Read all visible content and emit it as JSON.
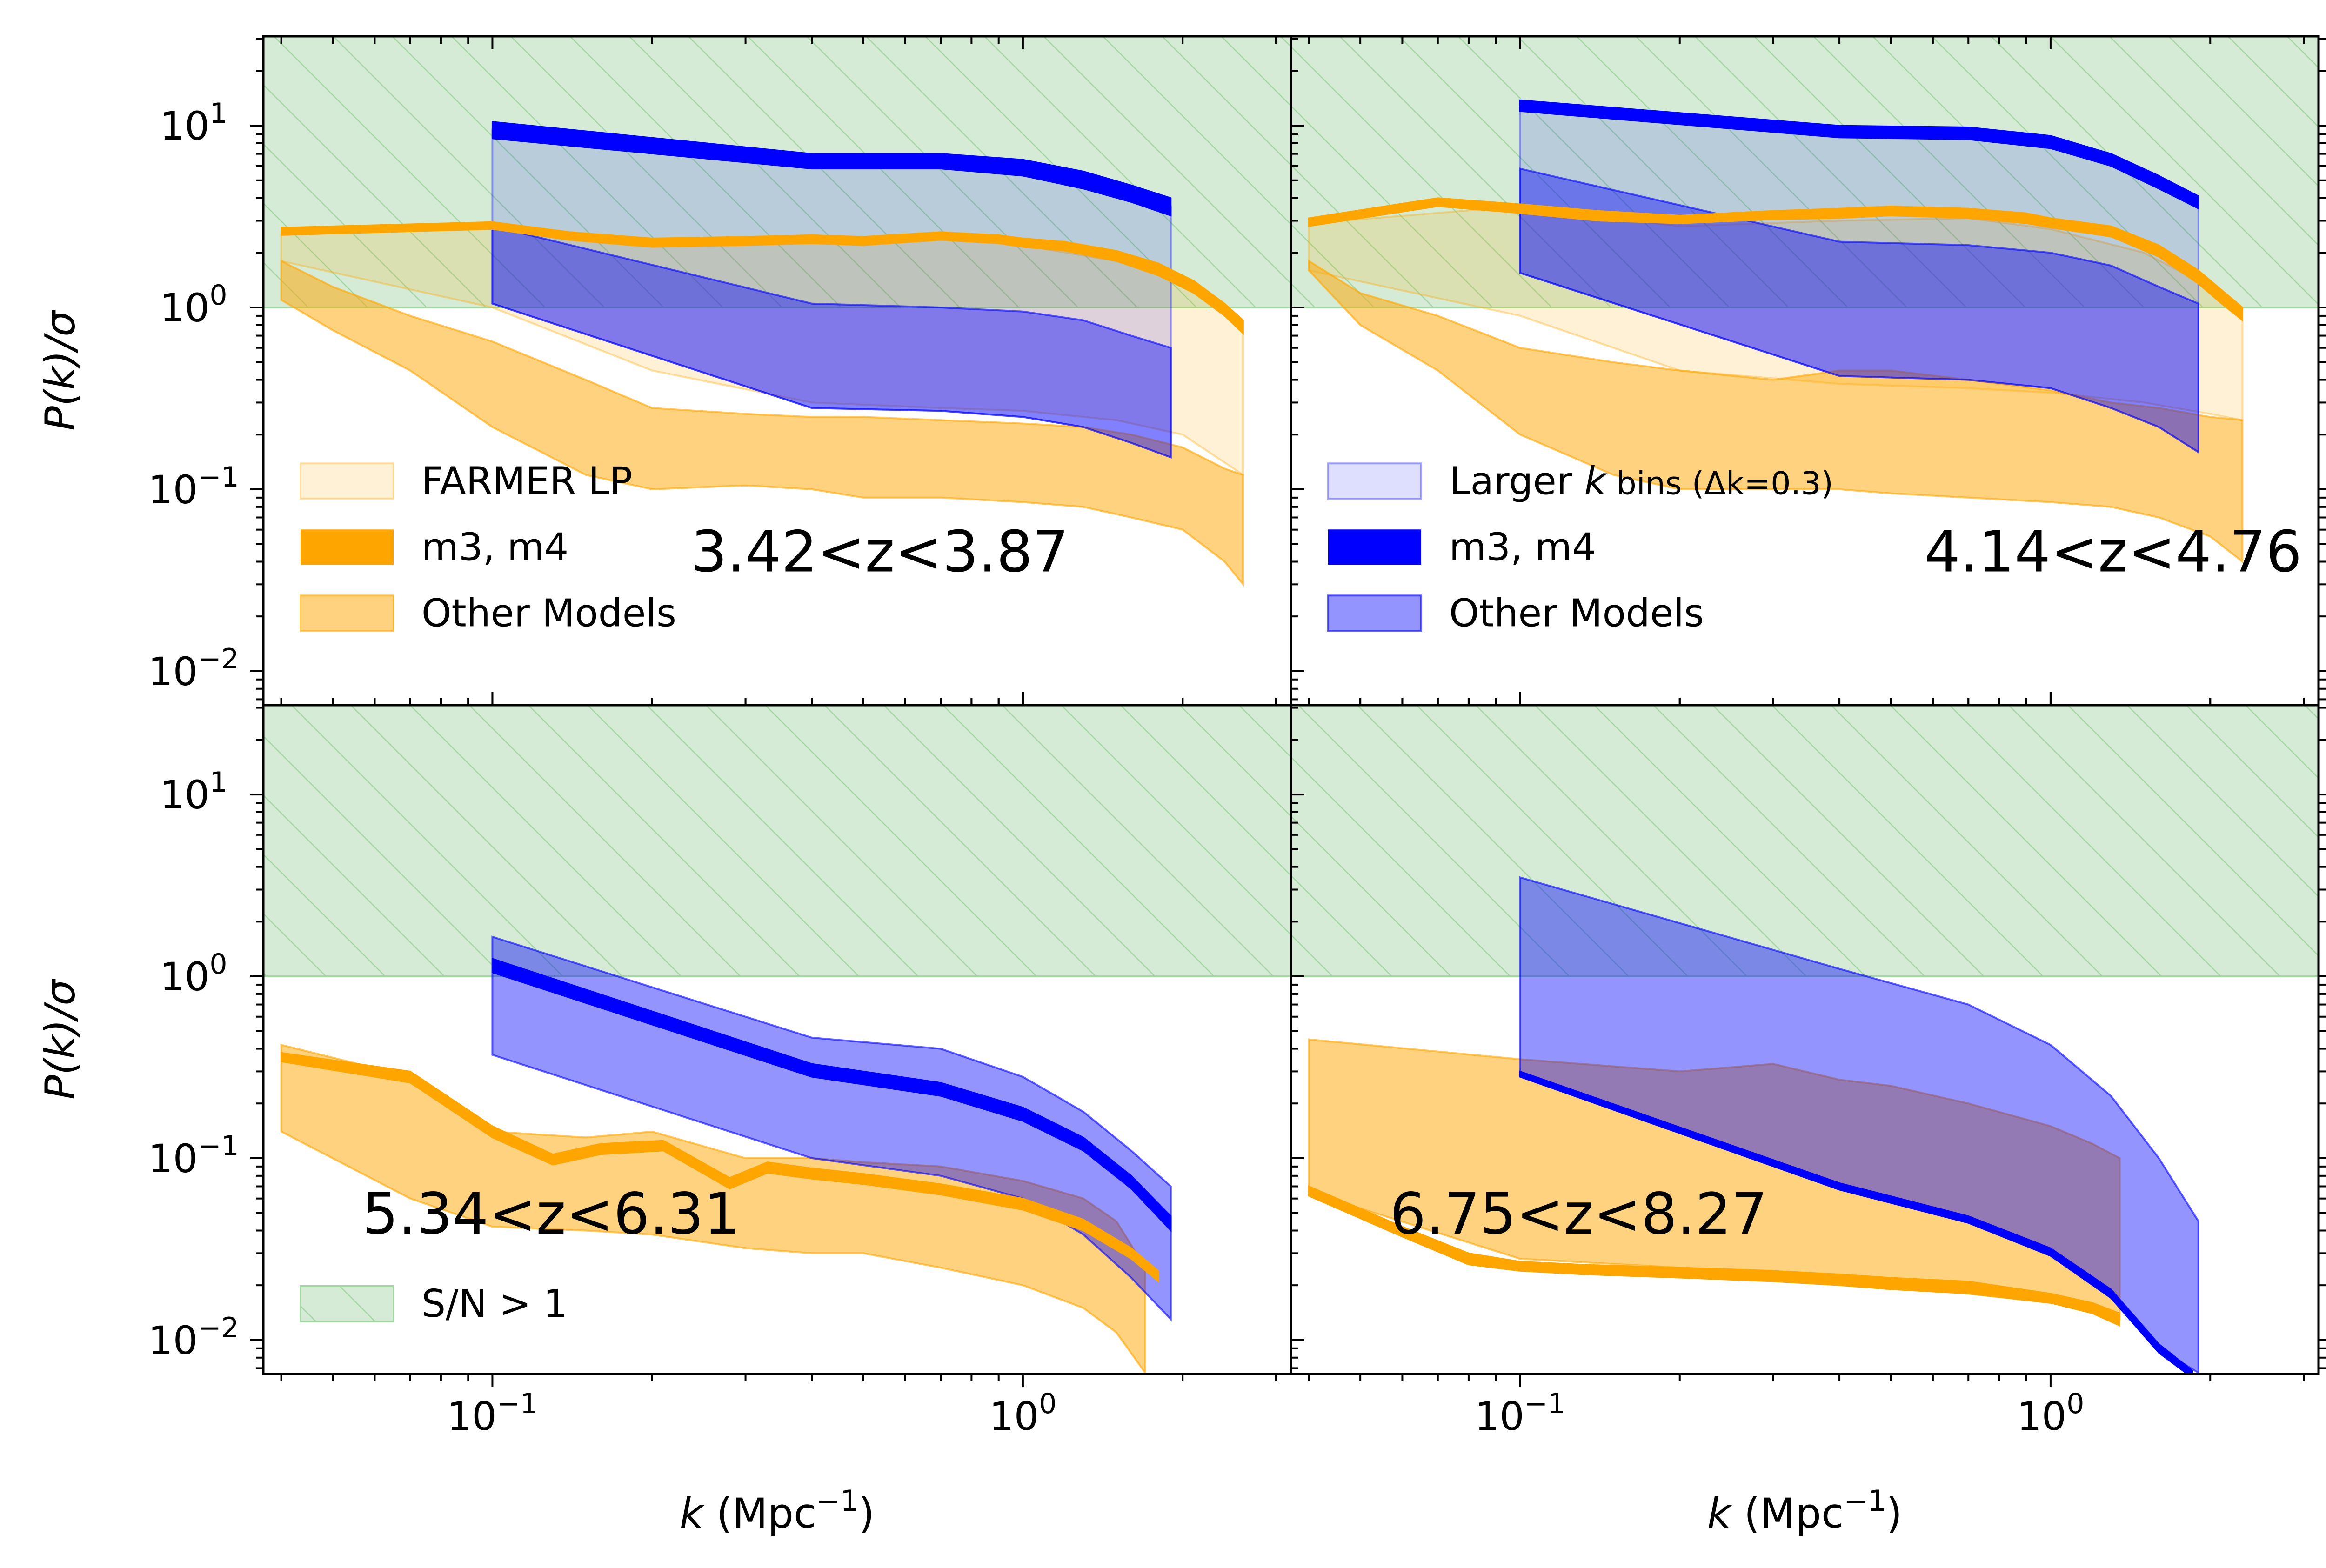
{
  "chart_data": {
    "type": "area",
    "shared_axes": {
      "xscale": "log",
      "yscale": "log",
      "xlim": [
        0.037,
        3.2
      ],
      "ylim": [
        0.0065,
        31
      ],
      "xlabel": {
        "prefix": "k",
        "unit": " (Mpc",
        "exp": "−1",
        "close": ")"
      },
      "ylabel": {
        "main": "P(k)/",
        "sym": "σ"
      },
      "xticks": [
        {
          "value": 0.1,
          "base": "10",
          "exp": "−1"
        },
        {
          "value": 1.0,
          "base": "10",
          "exp": "0"
        }
      ],
      "yticks": [
        {
          "value": 0.01,
          "base": "10",
          "exp": "−2"
        },
        {
          "value": 0.1,
          "base": "10",
          "exp": "−1"
        },
        {
          "value": 1.0,
          "base": "10",
          "exp": "0"
        },
        {
          "value": 10.0,
          "base": "10",
          "exp": "1"
        }
      ]
    },
    "colors": {
      "orange": "#ffa500",
      "blue": "#0000ff",
      "green_fill": "#d5ebd5",
      "green_hatch": "#a3d6a3"
    },
    "sn_region": {
      "ymin": 1.0,
      "ymax": 31,
      "label": "S/N > 1"
    },
    "panels": [
      {
        "id": "p1",
        "label": "3.42<z<3.87",
        "color": "orange",
        "legend": [
          {
            "kind": "light",
            "color": "orange",
            "text": "FARMER LP"
          },
          {
            "kind": "line",
            "color": "orange",
            "text": "m3, m4"
          },
          {
            "kind": "band",
            "color": "orange",
            "text": "Other Models"
          }
        ],
        "series": [
          {
            "name": "Other Models",
            "kind": "band",
            "color": "orange",
            "x": [
              0.04,
              0.05,
              0.07,
              0.1,
              0.15,
              0.2,
              0.3,
              0.4,
              0.5,
              0.7,
              1.0,
              1.3,
              1.6,
              2.0,
              2.4,
              2.6
            ],
            "upper": [
              1.8,
              1.3,
              0.9,
              0.65,
              0.4,
              0.28,
              0.26,
              0.25,
              0.25,
              0.24,
              0.23,
              0.22,
              0.2,
              0.17,
              0.13,
              0.12
            ],
            "lower": [
              1.1,
              0.75,
              0.45,
              0.22,
              0.12,
              0.1,
              0.105,
              0.1,
              0.09,
              0.09,
              0.085,
              0.08,
              0.07,
              0.06,
              0.04,
              0.03
            ]
          },
          {
            "name": "FARMER LP",
            "kind": "light",
            "color": "orange",
            "x": [
              0.04,
              0.1,
              0.2,
              0.4,
              0.7,
              1.0,
              1.5,
              2.0,
              2.6
            ],
            "upper": [
              2.6,
              2.8,
              2.2,
              2.3,
              2.4,
              2.2,
              1.8,
              1.4,
              0.85
            ],
            "lower": [
              1.8,
              1.0,
              0.45,
              0.3,
              0.28,
              0.27,
              0.24,
              0.2,
              0.12
            ]
          },
          {
            "name": "m3, m4",
            "kind": "line",
            "color": "orange",
            "x": [
              0.04,
              0.08,
              0.1,
              0.14,
              0.2,
              0.3,
              0.4,
              0.5,
              0.7,
              0.9,
              1.0,
              1.2,
              1.5,
              1.8,
              2.1,
              2.4,
              2.6
            ],
            "upper": [
              2.75,
              2.9,
              2.95,
              2.6,
              2.4,
              2.45,
              2.5,
              2.45,
              2.6,
              2.5,
              2.4,
              2.3,
              2.05,
              1.75,
              1.4,
              1.05,
              0.85
            ],
            "lower": [
              2.5,
              2.65,
              2.7,
              2.35,
              2.15,
              2.2,
              2.25,
              2.2,
              2.35,
              2.25,
              2.15,
              2.05,
              1.8,
              1.5,
              1.2,
              0.9,
              0.72
            ]
          },
          {
            "name": "Larger k bins (Δk=0.3)",
            "kind": "light",
            "color": "blue",
            "x": [
              0.1,
              0.4,
              0.7,
              1.0,
              1.3,
              1.6,
              1.9
            ],
            "upper": [
              9.5,
              6.5,
              6.5,
              6.0,
              5.0,
              4.2,
              3.6
            ],
            "lower": [
              1.05,
              0.28,
              0.27,
              0.25,
              0.22,
              0.18,
              0.15
            ]
          },
          {
            "name": "Other Models",
            "kind": "band",
            "color": "blue",
            "x": [
              0.1,
              0.4,
              0.7,
              1.0,
              1.3,
              1.6,
              1.9
            ],
            "upper": [
              2.8,
              1.05,
              1.0,
              0.95,
              0.85,
              0.7,
              0.6
            ],
            "lower": [
              1.05,
              0.28,
              0.27,
              0.25,
              0.22,
              0.18,
              0.15
            ]
          },
          {
            "name": "m3, m4",
            "kind": "line",
            "color": "blue",
            "x": [
              0.1,
              0.4,
              0.7,
              1.0,
              1.3,
              1.6,
              1.9
            ],
            "upper": [
              10.5,
              7.0,
              7.0,
              6.5,
              5.6,
              4.7,
              4.0
            ],
            "lower": [
              8.5,
              5.8,
              5.8,
              5.3,
              4.5,
              3.8,
              3.2
            ]
          }
        ]
      },
      {
        "id": "p2",
        "label": "4.14<z<4.76",
        "color": "blue",
        "legend": [
          {
            "kind": "light",
            "color": "blue",
            "text": "Larger k bins (Δk=0.3)"
          },
          {
            "kind": "line",
            "color": "blue",
            "text": "m3, m4"
          },
          {
            "kind": "band",
            "color": "blue",
            "text": "Other Models"
          }
        ],
        "series": [
          {
            "name": "Other Models",
            "kind": "band",
            "color": "orange",
            "x": [
              0.04,
              0.05,
              0.07,
              0.1,
              0.15,
              0.2,
              0.3,
              0.4,
              0.5,
              0.7,
              1.0,
              1.3,
              1.6,
              2.0,
              2.3
            ],
            "upper": [
              1.8,
              1.2,
              0.9,
              0.6,
              0.5,
              0.45,
              0.4,
              0.45,
              0.45,
              0.4,
              0.35,
              0.3,
              0.28,
              0.25,
              0.24
            ],
            "lower": [
              1.6,
              0.8,
              0.45,
              0.2,
              0.12,
              0.1,
              0.1,
              0.1,
              0.095,
              0.09,
              0.085,
              0.08,
              0.07,
              0.055,
              0.04
            ]
          },
          {
            "name": "FARMER LP",
            "kind": "light",
            "color": "orange",
            "x": [
              0.04,
              0.1,
              0.2,
              0.4,
              0.7,
              1.0,
              1.5,
              2.0,
              2.3
            ],
            "upper": [
              2.9,
              3.6,
              2.8,
              3.0,
              3.1,
              2.7,
              2.0,
              1.3,
              1.0
            ],
            "lower": [
              1.6,
              0.9,
              0.45,
              0.38,
              0.36,
              0.34,
              0.3,
              0.26,
              0.24
            ]
          },
          {
            "name": "m3, m4",
            "kind": "line",
            "color": "orange",
            "x": [
              0.04,
              0.07,
              0.1,
              0.14,
              0.2,
              0.3,
              0.4,
              0.5,
              0.7,
              0.9,
              1.0,
              1.3,
              1.6,
              1.9,
              2.1,
              2.3
            ],
            "upper": [
              3.1,
              4.0,
              3.7,
              3.4,
              3.2,
              3.4,
              3.5,
              3.6,
              3.5,
              3.3,
              3.1,
              2.8,
              2.2,
              1.6,
              1.25,
              1.0
            ],
            "lower": [
              2.8,
              3.6,
              3.3,
              3.0,
              2.9,
              3.05,
              3.1,
              3.2,
              3.1,
              2.9,
              2.75,
              2.45,
              1.9,
              1.35,
              1.05,
              0.85
            ]
          },
          {
            "name": "Larger k bins (Δk=0.3)",
            "kind": "light",
            "color": "blue",
            "x": [
              0.1,
              0.4,
              0.7,
              1.0,
              1.3,
              1.6,
              1.9
            ],
            "upper": [
              12.5,
              9.5,
              9.5,
              8.5,
              7.0,
              5.3,
              3.8
            ],
            "lower": [
              1.55,
              0.42,
              0.4,
              0.36,
              0.28,
              0.22,
              0.16
            ]
          },
          {
            "name": "Other Models",
            "kind": "band",
            "color": "blue",
            "x": [
              0.1,
              0.4,
              0.7,
              1.0,
              1.3,
              1.6,
              1.9
            ],
            "upper": [
              5.8,
              2.3,
              2.2,
              2.0,
              1.7,
              1.3,
              1.05
            ],
            "lower": [
              1.55,
              0.42,
              0.4,
              0.36,
              0.28,
              0.22,
              0.16
            ]
          },
          {
            "name": "m3, m4",
            "kind": "line",
            "color": "blue",
            "x": [
              0.1,
              0.4,
              0.7,
              1.0,
              1.3,
              1.6,
              1.9
            ],
            "upper": [
              13.8,
              10.0,
              9.8,
              8.8,
              7.0,
              5.3,
              4.1
            ],
            "lower": [
              12.0,
              8.6,
              8.4,
              7.5,
              6.0,
              4.5,
              3.5
            ]
          }
        ]
      },
      {
        "id": "p3",
        "label": "5.34<z<6.31",
        "color": "orange",
        "legend": [
          {
            "kind": "hatch",
            "color": "green",
            "text": "S/N > 1"
          }
        ],
        "series": [
          {
            "name": "Other Models",
            "kind": "band",
            "color": "orange",
            "x": [
              0.04,
              0.07,
              0.1,
              0.15,
              0.2,
              0.3,
              0.4,
              0.5,
              0.7,
              1.0,
              1.3,
              1.5,
              1.7
            ],
            "upper": [
              0.42,
              0.28,
              0.14,
              0.13,
              0.14,
              0.1,
              0.1,
              0.095,
              0.09,
              0.075,
              0.06,
              0.045,
              0.025
            ],
            "lower": [
              0.14,
              0.06,
              0.042,
              0.04,
              0.038,
              0.032,
              0.03,
              0.03,
              0.025,
              0.02,
              0.015,
              0.011,
              0.0066
            ]
          },
          {
            "name": "Other Models",
            "kind": "band",
            "color": "blue",
            "x": [
              0.1,
              0.4,
              0.7,
              1.0,
              1.3,
              1.6,
              1.9
            ],
            "upper": [
              1.65,
              0.46,
              0.4,
              0.28,
              0.18,
              0.11,
              0.07
            ],
            "lower": [
              0.37,
              0.1,
              0.08,
              0.06,
              0.038,
              0.022,
              0.013
            ]
          },
          {
            "name": "m3, m4",
            "kind": "line",
            "color": "orange",
            "x": [
              0.04,
              0.07,
              0.1,
              0.13,
              0.16,
              0.21,
              0.28,
              0.33,
              0.4,
              0.5,
              0.7,
              1.0,
              1.3,
              1.6,
              1.8
            ],
            "upper": [
              0.38,
              0.3,
              0.15,
              0.105,
              0.12,
              0.125,
              0.078,
              0.095,
              0.088,
              0.082,
              0.072,
              0.06,
              0.046,
              0.032,
              0.024
            ],
            "lower": [
              0.34,
              0.26,
              0.13,
              0.092,
              0.105,
              0.11,
              0.068,
              0.083,
              0.077,
              0.072,
              0.063,
              0.052,
              0.04,
              0.028,
              0.021
            ]
          },
          {
            "name": "m3, m4",
            "kind": "line",
            "color": "blue",
            "x": [
              0.1,
              0.4,
              0.7,
              1.0,
              1.3,
              1.6,
              1.9
            ],
            "upper": [
              1.25,
              0.33,
              0.26,
              0.19,
              0.13,
              0.08,
              0.048
            ],
            "lower": [
              1.05,
              0.28,
              0.22,
              0.16,
              0.11,
              0.068,
              0.04
            ]
          }
        ]
      },
      {
        "id": "p4",
        "label": "6.75<z<8.27",
        "color": "blue",
        "legend": [],
        "series": [
          {
            "name": "Other Models",
            "kind": "band",
            "color": "orange",
            "x": [
              0.04,
              0.1,
              0.2,
              0.3,
              0.4,
              0.5,
              0.7,
              1.0,
              1.2,
              1.35
            ],
            "upper": [
              0.45,
              0.35,
              0.3,
              0.33,
              0.27,
              0.25,
              0.2,
              0.15,
              0.12,
              0.1
            ],
            "lower": [
              0.065,
              0.028,
              0.025,
              0.024,
              0.022,
              0.02,
              0.018,
              0.016,
              0.015,
              0.013
            ]
          },
          {
            "name": "Other Models",
            "kind": "band",
            "color": "blue",
            "x": [
              0.1,
              0.4,
              0.7,
              1.0,
              1.3,
              1.6,
              1.9
            ],
            "upper": [
              3.5,
              1.1,
              0.7,
              0.42,
              0.22,
              0.1,
              0.045
            ],
            "lower": [
              0.29,
              0.07,
              0.046,
              0.03,
              0.018,
              0.009,
              0.0066
            ]
          },
          {
            "name": "m3, m4",
            "kind": "line",
            "color": "orange",
            "x": [
              0.04,
              0.06,
              0.08,
              0.1,
              0.13,
              0.2,
              0.3,
              0.4,
              0.5,
              0.7,
              1.0,
              1.2,
              1.35
            ],
            "upper": [
              0.07,
              0.042,
              0.03,
              0.027,
              0.026,
              0.025,
              0.024,
              0.023,
              0.022,
              0.021,
              0.018,
              0.016,
              0.014
            ],
            "lower": [
              0.062,
              0.037,
              0.026,
              0.024,
              0.023,
              0.022,
              0.021,
              0.02,
              0.019,
              0.018,
              0.016,
              0.014,
              0.012
            ]
          },
          {
            "name": "m3, m4",
            "kind": "line",
            "color": "blue",
            "x": [
              0.1,
              0.4,
              0.7,
              1.0,
              1.3,
              1.6,
              1.85
            ],
            "upper": [
              0.3,
              0.073,
              0.048,
              0.032,
              0.019,
              0.0095,
              0.0068
            ],
            "lower": [
              0.28,
              0.067,
              0.044,
              0.029,
              0.017,
              0.0085,
              0.0062
            ]
          }
        ]
      }
    ]
  }
}
